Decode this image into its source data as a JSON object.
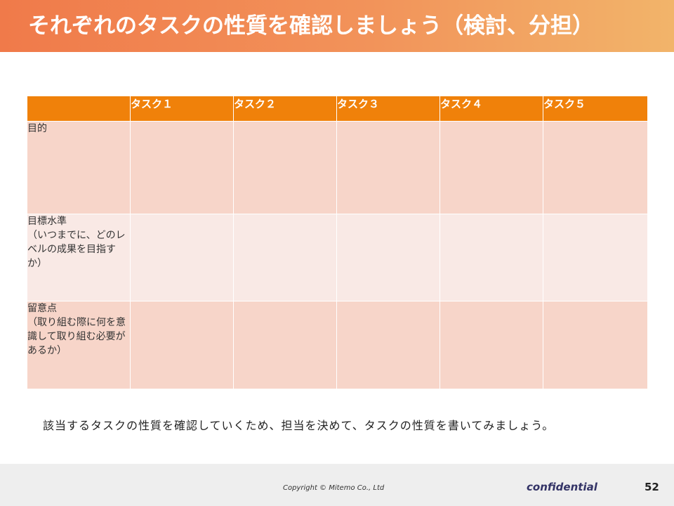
{
  "title": "それぞれのタスクの性質を確認しましょう（検討、分担）",
  "colors": {
    "title_gradient_start": "#f07a4a",
    "title_gradient_end": "#f2b46a",
    "header_orange": "#f0810a",
    "row_dark": "#f7d5c9",
    "row_light": "#f9e9e5"
  },
  "table": {
    "corner": "",
    "columns": [
      "タスク１",
      "タスク２",
      "タスク３",
      "タスク４",
      "タスク５"
    ],
    "rows": [
      "目的",
      "目標水準\n（いつまでに、どのレベルの成果を目指すか）",
      "留意点\n（取り組む際に何を意識して取り組む必要があるか）"
    ]
  },
  "note": "該当するタスクの性質を確認していくため、担当を決めて、タスクの性質を書いてみましょう。",
  "footer": {
    "copyright": "Copyright © Mitemo Co., Ltd",
    "confidential": "confidential",
    "page_number": "52"
  }
}
